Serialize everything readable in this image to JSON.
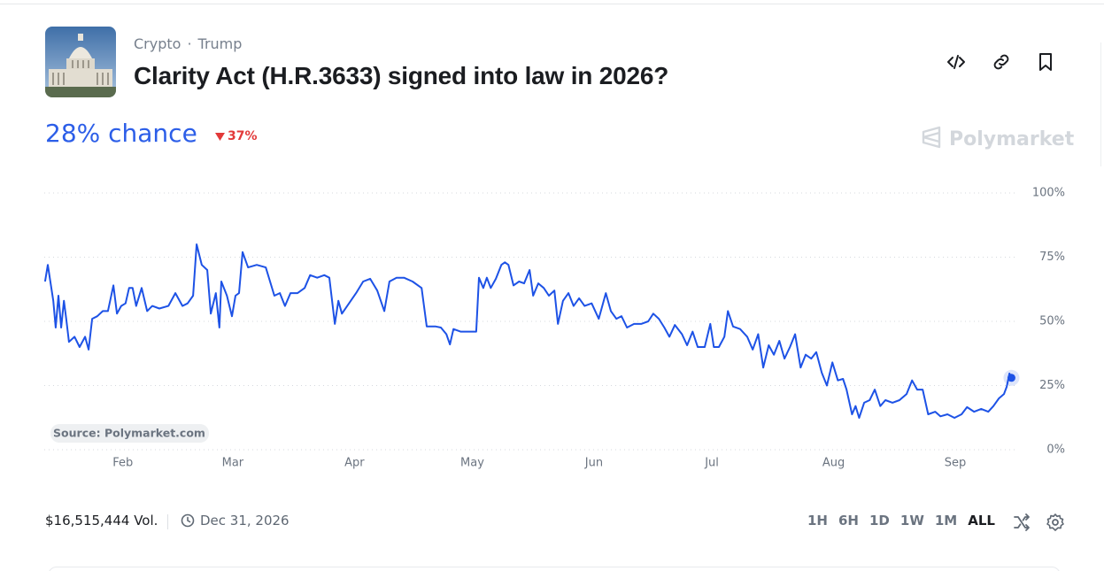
{
  "header": {
    "categories": [
      "Crypto",
      "Trump"
    ],
    "title": "Clarity Act (H.R.3633) signed into law in 2026?"
  },
  "probability": {
    "headline": "28% chance",
    "change": "37%"
  },
  "brand": "Polymarket",
  "chart_data": {
    "type": "line",
    "source": "Source: Polymarket.com",
    "color": "#1d52e6",
    "x": [
      11.2,
      11.9,
      12.6,
      13.3,
      13.9,
      14.6,
      15.3,
      16.0,
      16.6,
      17.3,
      18.7,
      20.0,
      21.4,
      22.3,
      23.2,
      24.5,
      25.9,
      27.2,
      28.6,
      29.5,
      30.6,
      31.7,
      32.6,
      33.5,
      34.4,
      35.8,
      37.2,
      38.5,
      40.3,
      42.6,
      44.4,
      46.2,
      47.5,
      48.9,
      49.8,
      51.1,
      52.5,
      53.4,
      54.7,
      55.6,
      56.1,
      57.5,
      58.8,
      59.7,
      60.6,
      61.5,
      62.9,
      65.1,
      67.4,
      69.6,
      71.0,
      72.3,
      73.7,
      75.5,
      77.3,
      78.7,
      80.5,
      82.3,
      83.6,
      85.0,
      85.9,
      86.8,
      88.6,
      90.4,
      92.2,
      94.0,
      95.8,
      97.6,
      98.9,
      100.7,
      102.6,
      104.8,
      107.1,
      108.4,
      110.7,
      112.0,
      113.4,
      114.3,
      115.2,
      117.0,
      119.2,
      121.0,
      121.7,
      122.8,
      123.7,
      124.7,
      126.0,
      127.4,
      128.3,
      129.2,
      130.5,
      131.9,
      133.2,
      134.6,
      135.5,
      136.8,
      138.2,
      139.5,
      140.9,
      141.8,
      143.1,
      144.5,
      145.8,
      147.2,
      148.6,
      150.4,
      152.2,
      154.0,
      155.3,
      156.7,
      158.0,
      159.4,
      161.2,
      163.0,
      164.8,
      166.1,
      167.5,
      168.9,
      170.2,
      171.6,
      173.4,
      174.7,
      176.1,
      177.4,
      179.2,
      180.6,
      181.5,
      182.8,
      184.2,
      185.1,
      186.4,
      188.2,
      190.0,
      191.4,
      192.8,
      194.1,
      195.5,
      196.8,
      198.2,
      199.5,
      200.9,
      202.2,
      203.6,
      204.9,
      206.3,
      207.6,
      209.0,
      210.3,
      211.7,
      213.1,
      214.4,
      215.3,
      216.7,
      217.6,
      218.5,
      219.8,
      221.2,
      222.5,
      223.9,
      225.2,
      227.0,
      228.8,
      230.6,
      232.0,
      233.3,
      234.7,
      236.1,
      237.9,
      239.2,
      241.0,
      242.8,
      244.6,
      246.0,
      247.8,
      249.6,
      251.4,
      252.7,
      254.1,
      255.4,
      256.1,
      256.8,
      257.3
    ],
    "values": [
      65.5,
      72,
      65,
      58,
      47.6,
      60,
      47.6,
      58,
      51,
      42,
      44,
      40,
      44,
      39,
      51,
      52,
      54,
      54,
      64,
      53,
      56,
      57,
      63,
      63,
      56,
      63,
      54,
      56,
      55,
      56,
      61,
      56,
      57,
      60,
      80,
      72,
      70,
      53,
      61,
      47.6,
      65.5,
      60,
      52,
      60,
      61,
      77,
      71,
      72,
      71,
      60,
      61,
      56,
      61,
      61,
      63,
      68,
      67,
      68,
      67,
      49,
      58,
      53,
      57,
      61,
      65.5,
      66.6,
      62,
      54,
      65.5,
      67,
      67,
      65.5,
      63,
      48,
      48,
      47.6,
      45,
      41,
      47,
      46,
      46,
      46,
      67,
      63,
      67,
      63,
      66.6,
      72,
      73,
      72,
      64,
      65.5,
      64.8,
      70,
      60,
      64.8,
      63,
      60,
      62,
      49,
      58,
      61,
      56,
      59,
      56,
      57,
      51,
      61,
      54,
      51,
      52,
      47.6,
      49,
      49,
      50,
      53,
      51,
      47.6,
      44,
      48.6,
      45,
      40.7,
      46,
      40,
      40,
      49,
      40,
      40,
      44,
      54,
      48,
      47,
      44,
      39,
      45,
      32,
      40.7,
      37,
      42.4,
      35.5,
      40,
      45,
      32,
      37,
      35.5,
      38,
      30,
      25,
      34,
      27,
      27.6,
      23.4,
      13.8,
      17,
      12.4,
      18.3,
      19.3,
      23.4,
      17,
      19.3,
      18.3,
      19.3,
      21.7,
      27,
      23.4,
      23.4,
      13.8,
      14.8,
      13,
      13.8,
      12.4,
      13.8,
      16.6,
      14.8,
      15.9,
      14.8,
      17,
      20,
      21.7,
      24.5,
      29.7,
      28
    ],
    "xlim": [
      11,
      259
    ],
    "xticks": [
      {
        "value": 31,
        "label": "Feb"
      },
      {
        "value": 59,
        "label": "Mar"
      },
      {
        "value": 90,
        "label": "Apr"
      },
      {
        "value": 120,
        "label": "May"
      },
      {
        "value": 151,
        "label": "Jun"
      },
      {
        "value": 181,
        "label": "Jul"
      },
      {
        "value": 212,
        "label": "Aug"
      },
      {
        "value": 243,
        "label": "Sep"
      }
    ],
    "ylim": [
      0,
      100
    ],
    "yticks": [
      {
        "value": 0,
        "label": "0%"
      },
      {
        "value": 25,
        "label": "25%"
      },
      {
        "value": 50,
        "label": "50%"
      },
      {
        "value": 75,
        "label": "75%"
      },
      {
        "value": 100,
        "label": "100%"
      }
    ],
    "grid": true
  },
  "footer": {
    "volume": "$16,515,444 Vol.",
    "end_date": "Dec 31, 2026",
    "ranges": [
      "1H",
      "6H",
      "1D",
      "1W",
      "1M",
      "ALL"
    ],
    "active_range": 5
  }
}
